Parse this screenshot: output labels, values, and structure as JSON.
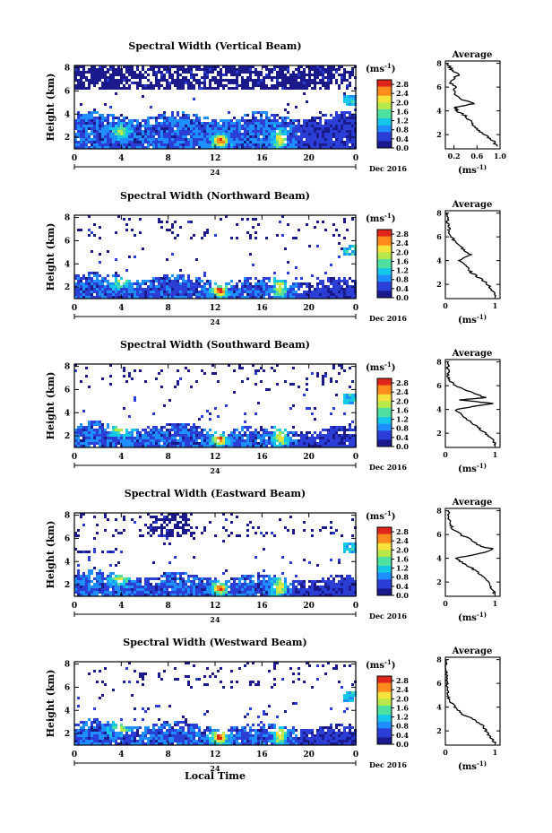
{
  "figure": {
    "xlabel": "Local Time",
    "colorbar_unit": "(ms",
    "colorbar_unit_sup": "-1",
    "colorbar_ticks": [
      "0.0",
      "0.4",
      "0.8",
      "1.2",
      "1.6",
      "2.0",
      "2.4",
      "2.8"
    ],
    "colorbar_range": [
      0,
      3.0
    ],
    "colormap": [
      "#1a1a8c",
      "#2b3fd6",
      "#1f8fff",
      "#16c8e8",
      "#4fe0a0",
      "#b8e84a",
      "#f5e23a",
      "#ff8a1e",
      "#e0261a"
    ],
    "date_label": "Dec 2016",
    "day_label": "24",
    "time_ticks": [
      "0",
      "4",
      "8",
      "12",
      "16",
      "20",
      "0"
    ],
    "time_range": [
      0,
      24
    ],
    "height_ticks": [
      "2",
      "4",
      "6",
      "8"
    ],
    "height_range": [
      1,
      8.2
    ],
    "ylabel": "Height (km)",
    "avg_title": "Average",
    "avg_xlabel": "(ms",
    "avg_xlabel_sup": "-1)",
    "avg_height_ticks": [
      "2",
      "4",
      "6",
      "8"
    ]
  },
  "chart_data": [
    {
      "type": "heatmap",
      "title": "Spectral Width (Vertical Beam)",
      "beam": "vertical",
      "avg_xticks": [
        "0.2",
        "0.6",
        "1.0"
      ],
      "avg_xlim": [
        0.05,
        1.0
      ],
      "avg_profile": {
        "height": [
          1.0,
          1.5,
          2.0,
          2.5,
          3.0,
          3.5,
          4.0,
          4.3,
          4.6,
          5.0,
          5.5,
          6.0,
          6.5,
          7.0,
          7.5,
          8.0
        ],
        "value": [
          0.95,
          0.88,
          0.72,
          0.6,
          0.5,
          0.42,
          0.25,
          0.22,
          0.55,
          0.3,
          0.2,
          0.22,
          0.12,
          0.28,
          0.15,
          0.1
        ]
      }
    },
    {
      "type": "heatmap",
      "title": "Spectral Width (Northward Beam)",
      "beam": "northward",
      "avg_xticks": [
        "0",
        "1"
      ],
      "avg_xlim": [
        0,
        1.1
      ],
      "avg_profile": {
        "height": [
          1.0,
          1.5,
          2.0,
          2.5,
          3.0,
          3.5,
          4.0,
          4.5,
          5.0,
          5.5,
          6.0,
          6.5,
          7.0,
          7.5,
          8.0
        ],
        "value": [
          1.0,
          0.95,
          0.85,
          0.7,
          0.52,
          0.42,
          0.3,
          0.5,
          0.35,
          0.22,
          0.12,
          0.08,
          0.05,
          0.05,
          0.05
        ]
      }
    },
    {
      "type": "heatmap",
      "title": "Spectral Width (Southward Beam)",
      "beam": "southward",
      "avg_xticks": [
        "0",
        "1"
      ],
      "avg_xlim": [
        0,
        1.1
      ],
      "avg_profile": {
        "height": [
          1.0,
          1.5,
          2.0,
          2.5,
          3.0,
          3.5,
          4.0,
          4.5,
          4.8,
          5.0,
          5.5,
          6.0,
          6.5,
          7.0,
          8.0
        ],
        "value": [
          1.0,
          0.95,
          0.8,
          0.65,
          0.5,
          0.35,
          0.2,
          0.95,
          0.3,
          0.8,
          0.5,
          0.2,
          0.08,
          0.05,
          0.05
        ]
      }
    },
    {
      "type": "heatmap",
      "title": "Spectral Width (Eastward Beam)",
      "beam": "eastward",
      "avg_xticks": [
        "0",
        "1"
      ],
      "avg_xlim": [
        0,
        1.1
      ],
      "avg_profile": {
        "height": [
          1.0,
          1.5,
          2.0,
          2.5,
          3.0,
          3.5,
          4.0,
          4.5,
          4.8,
          5.0,
          5.5,
          6.0,
          6.5,
          7.0,
          8.0
        ],
        "value": [
          1.0,
          0.92,
          0.88,
          0.72,
          0.6,
          0.4,
          0.2,
          0.8,
          0.95,
          0.7,
          0.55,
          0.3,
          0.15,
          0.08,
          0.05
        ]
      }
    },
    {
      "type": "heatmap",
      "title": "Spectral Width (Westward Beam)",
      "beam": "westward",
      "avg_xticks": [
        "0",
        "1"
      ],
      "avg_xlim": [
        0,
        1.1
      ],
      "avg_profile": {
        "height": [
          1.0,
          1.5,
          2.0,
          2.5,
          3.0,
          3.5,
          4.0,
          4.5,
          5.0,
          5.5,
          6.0,
          6.5,
          7.0,
          8.0
        ],
        "value": [
          1.0,
          0.9,
          0.82,
          0.75,
          0.55,
          0.3,
          0.2,
          0.1,
          0.05,
          0.05,
          0.03,
          0.03,
          0.02,
          0.02
        ]
      }
    }
  ]
}
